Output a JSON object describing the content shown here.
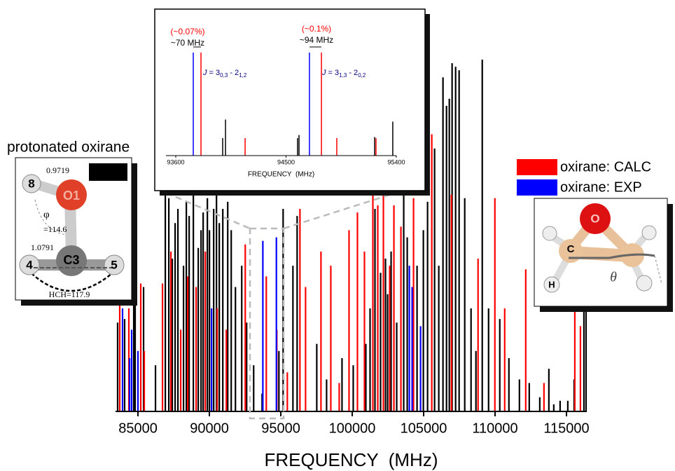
{
  "chart_data": [
    {
      "type": "stem",
      "xlabel": "FREQUENCY  (MHz)",
      "xlim": [
        83430,
        116420
      ],
      "ylim": [
        0,
        100
      ],
      "xticks": [
        85000,
        90000,
        95000,
        100000,
        105000,
        110000,
        115000
      ],
      "legend": "upper right",
      "series": [
        {
          "color": "#000000",
          "x": [
            83576,
            84067,
            84705,
            84804,
            85393,
            86227,
            86915,
            87160,
            87405,
            87602,
            87798,
            88191,
            88387,
            88584,
            88878,
            89222,
            89418,
            89565,
            89860,
            90007,
            90302,
            90498,
            90694,
            90940,
            91284,
            91529,
            91824,
            92265,
            92609,
            93100,
            93689,
            94867,
            95162,
            95849,
            96143,
            97518,
            98205,
            99285,
            100071,
            100954,
            101249,
            101592,
            101985,
            102329,
            102476,
            102721,
            103114,
            103605,
            103851,
            104538,
            104980,
            105274,
            105765,
            106060,
            106354,
            106600,
            106796,
            106992,
            107238,
            107483,
            107876,
            108318,
            108661,
            109103,
            109545,
            110330,
            110969,
            111705,
            112392,
            113129,
            113767,
            114110,
            114552,
            115092,
            115534,
            116221,
            116369
          ],
          "values": [
            25,
            26,
            49,
            33,
            35,
            13,
            61,
            60,
            43,
            53,
            57,
            41,
            59,
            55,
            63,
            46,
            51,
            56,
            60,
            51,
            57,
            61,
            53,
            57,
            59,
            51,
            35,
            41,
            25,
            13,
            5,
            17,
            57,
            41,
            55,
            19,
            9,
            15,
            13,
            19,
            29,
            57,
            39,
            43,
            33,
            45,
            25,
            63,
            49,
            41,
            51,
            59,
            74,
            41,
            94,
            86,
            88,
            98,
            97,
            96,
            60,
            29,
            17,
            99,
            29,
            26,
            15,
            9,
            8,
            4,
            12,
            2,
            3,
            3,
            9,
            28,
            43
          ]
        },
        {
          "name": "oxirane: CALC",
          "color": "#ff0000",
          "x": [
            83724,
            84362,
            85196,
            85442,
            86718,
            87307,
            87994,
            88485,
            89074,
            89713,
            90547,
            91185,
            92511,
            93983,
            94720,
            95456,
            96340,
            96733,
            97812,
            98500,
            99089,
            99776,
            100365,
            100856,
            101445,
            101789,
            102182,
            102623,
            102918,
            103409,
            104292,
            105569,
            106943,
            108809,
            109987,
            110674,
            112147,
            113423,
            115583,
            115976
          ],
          "values": [
            48,
            29,
            36,
            17,
            36,
            45,
            23,
            38,
            35,
            45,
            29,
            23,
            47,
            38,
            23,
            11,
            57,
            35,
            45,
            41,
            8,
            51,
            56,
            45,
            66,
            58,
            62,
            41,
            58,
            52,
            60,
            78,
            61,
            43,
            60,
            29,
            40,
            8,
            29,
            24
          ]
        },
        {
          "name": "oxirane: EXP",
          "color": "#0000ff",
          "x": [
            83920,
            84411,
            84558,
            85000,
            90154,
            93743,
            94691,
            103998,
            104194,
            104783
          ],
          "values": [
            29,
            15,
            23,
            17,
            29,
            48,
            49,
            41,
            35,
            24
          ]
        }
      ]
    },
    {
      "type": "stem",
      "xlabel": "FREQUENCY  (MHz)",
      "xlim": [
        93520,
        95400
      ],
      "ylim": [
        0,
        100
      ],
      "xticks": [
        93600,
        94500,
        95400
      ],
      "series": [
        {
          "color": "#000000",
          "x": [
            93983,
            94006,
            94594,
            94606,
            95223,
            95371
          ],
          "values": [
            17,
            35,
            17,
            20,
            18,
            33
          ]
        },
        {
          "color": "#ff0000",
          "x": [
            93806,
            94166,
            94789,
            94914,
            95234
          ],
          "values": [
            100,
            17,
            100,
            17,
            17
          ]
        },
        {
          "color": "#0000ff",
          "x": [
            93743,
            94691
          ],
          "values": [
            100,
            100
          ]
        }
      ],
      "annotations": [
        {
          "text": "(~0.07%)",
          "color": "#ff0000"
        },
        {
          "text": "~70 MHz",
          "color": "#000000"
        },
        {
          "text": "(~0.1%)",
          "color": "#ff0000"
        },
        {
          "text": "~94 MHz",
          "color": "#000000"
        },
        {
          "parts": [
            "J",
            " = 3",
            "0,3",
            " - 2",
            "1,2"
          ],
          "color": "#000080"
        },
        {
          "parts": [
            "J",
            " = 3",
            "1,3",
            " - 2",
            "0,2"
          ],
          "color": "#000080"
        }
      ]
    }
  ],
  "figures": {
    "protonated": {
      "title": "protonated oxirane",
      "labels": [
        "0.9719",
        "8",
        "O1",
        "φ",
        "=114.6",
        "1.0791",
        "C3",
        "4",
        "5",
        "HCH=117.9"
      ]
    },
    "oxirane": {
      "labels": [
        "O",
        "C",
        "H",
        "θ"
      ]
    }
  }
}
